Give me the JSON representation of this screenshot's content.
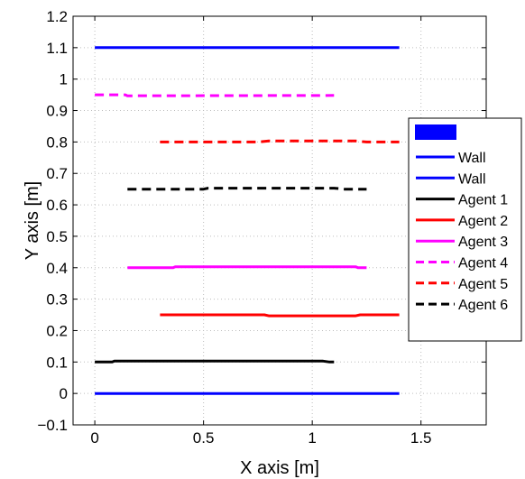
{
  "chart_data": {
    "type": "line",
    "xlabel": "X axis [m]",
    "ylabel": "Y axis [m]",
    "xlim": [
      -0.1,
      1.8
    ],
    "ylim": [
      -0.1,
      1.2
    ],
    "x_ticks": [
      "0",
      "0.5",
      "1",
      "1.5"
    ],
    "x_tick_values": [
      0,
      0.5,
      1,
      1.5
    ],
    "y_ticks": [
      "−0.1",
      "0",
      "0.1",
      "0.2",
      "0.3",
      "0.4",
      "0.5",
      "0.6",
      "0.7",
      "0.8",
      "0.9",
      "1",
      "1.1",
      "1.2"
    ],
    "y_tick_values": [
      -0.1,
      0,
      0.1,
      0.2,
      0.3,
      0.4,
      0.5,
      0.6,
      0.7,
      0.8,
      0.9,
      1.0,
      1.1,
      1.2
    ],
    "grid": true,
    "legend_position": "right",
    "series": [
      {
        "name": "Wall",
        "color": "#0000ff",
        "dash": "solid",
        "points": [
          [
            0,
            1.1
          ],
          [
            1.4,
            1.1
          ]
        ]
      },
      {
        "name": "Wall",
        "color": "#0000ff",
        "dash": "solid",
        "points": [
          [
            0,
            0
          ],
          [
            1.4,
            0
          ]
        ]
      },
      {
        "name": "Agent 1",
        "color": "#000000",
        "dash": "solid",
        "points": [
          [
            0,
            0.1
          ],
          [
            0.08,
            0.1
          ],
          [
            0.09,
            0.103
          ],
          [
            1.05,
            0.103
          ],
          [
            1.08,
            0.1
          ],
          [
            1.1,
            0.1
          ]
        ]
      },
      {
        "name": "Agent 2",
        "color": "#ff0000",
        "dash": "solid",
        "points": [
          [
            0.3,
            0.25
          ],
          [
            0.78,
            0.25
          ],
          [
            0.8,
            0.247
          ],
          [
            1.2,
            0.247
          ],
          [
            1.22,
            0.25
          ],
          [
            1.4,
            0.25
          ]
        ]
      },
      {
        "name": "Agent 3",
        "color": "#ff00ff",
        "dash": "solid",
        "points": [
          [
            0.15,
            0.4
          ],
          [
            0.36,
            0.4
          ],
          [
            0.37,
            0.403
          ],
          [
            1.2,
            0.403
          ],
          [
            1.21,
            0.4
          ],
          [
            1.25,
            0.4
          ]
        ]
      },
      {
        "name": "Agent 4",
        "color": "#ff00ff",
        "dash": "dashed",
        "points": [
          [
            0,
            0.95
          ],
          [
            0.14,
            0.95
          ],
          [
            0.15,
            0.947
          ],
          [
            1.1,
            0.948
          ]
        ]
      },
      {
        "name": "Agent 5",
        "color": "#ff0000",
        "dash": "dashed",
        "points": [
          [
            0.3,
            0.8
          ],
          [
            0.75,
            0.8
          ],
          [
            0.8,
            0.803
          ],
          [
            1.2,
            0.803
          ],
          [
            1.25,
            0.8
          ],
          [
            1.4,
            0.8
          ]
        ]
      },
      {
        "name": "Agent 6",
        "color": "#000000",
        "dash": "dashed",
        "points": [
          [
            0.15,
            0.65
          ],
          [
            0.5,
            0.65
          ],
          [
            0.52,
            0.653
          ],
          [
            1.1,
            0.653
          ],
          [
            1.15,
            0.65
          ],
          [
            1.25,
            0.65
          ]
        ]
      }
    ],
    "legend_patch_color": "#0000ff"
  }
}
